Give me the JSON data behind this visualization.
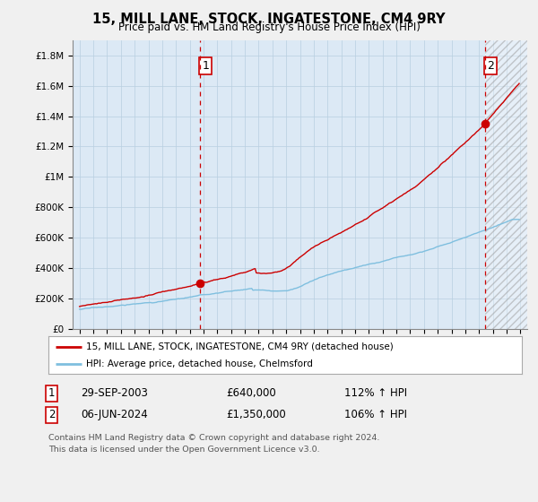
{
  "title": "15, MILL LANE, STOCK, INGATESTONE, CM4 9RY",
  "subtitle": "Price paid vs. HM Land Registry's House Price Index (HPI)",
  "legend_line1": "15, MILL LANE, STOCK, INGATESTONE, CM4 9RY (detached house)",
  "legend_line2": "HPI: Average price, detached house, Chelmsford",
  "transaction1_date": "29-SEP-2003",
  "transaction1_price": "£640,000",
  "transaction1_hpi": "112% ↑ HPI",
  "transaction2_date": "06-JUN-2024",
  "transaction2_price": "£1,350,000",
  "transaction2_hpi": "106% ↑ HPI",
  "footer": "Contains HM Land Registry data © Crown copyright and database right 2024.\nThis data is licensed under the Open Government Licence v3.0.",
  "hpi_color": "#7fbfdf",
  "price_color": "#cc0000",
  "vline_color": "#cc0000",
  "vline1_x": 2003.75,
  "vline2_x": 2024.43,
  "ylim_min": 0,
  "ylim_max": 1900000,
  "xlim_min": 1994.5,
  "xlim_max": 2027.5,
  "background_color": "#f0f0f0",
  "plot_bg_color": "#dce9f5",
  "grid_color": "#b8cfe0",
  "hatch_color": "#b0b0b0"
}
